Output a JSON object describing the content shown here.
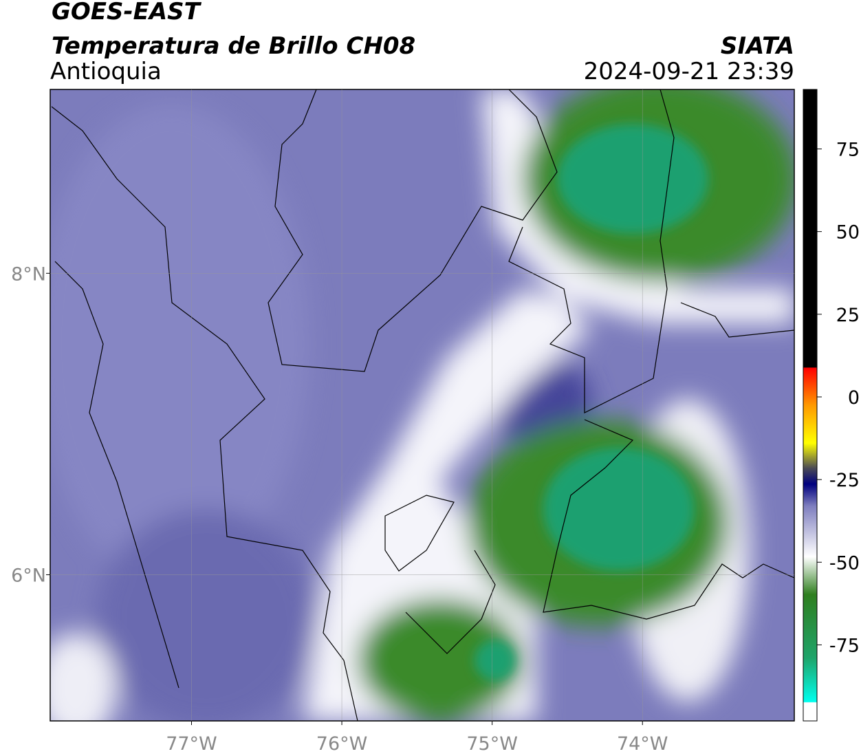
{
  "header": {
    "title": "GOES-EAST",
    "subtitle": "Temperatura de Brillo CH08",
    "region": "Antioquia",
    "agency": "SIATA",
    "datetime": "2024-09-21 23:39"
  },
  "map": {
    "xlim": [
      -77.94,
      -72.99
    ],
    "ylim": [
      5.03,
      9.22
    ],
    "xticks": [
      {
        "value": -77,
        "label": "77°W"
      },
      {
        "value": -76,
        "label": "76°W"
      },
      {
        "value": -75,
        "label": "75°W"
      },
      {
        "value": -74,
        "label": "74°W"
      }
    ],
    "yticks": [
      {
        "value": 6,
        "label": "6°N"
      },
      {
        "value": 8,
        "label": "8°N"
      }
    ],
    "grid": true
  },
  "colorbar": {
    "lim": [
      -98,
      93
    ],
    "ticks": [
      75,
      50,
      25,
      0,
      -25,
      -50,
      -75
    ]
  }
}
